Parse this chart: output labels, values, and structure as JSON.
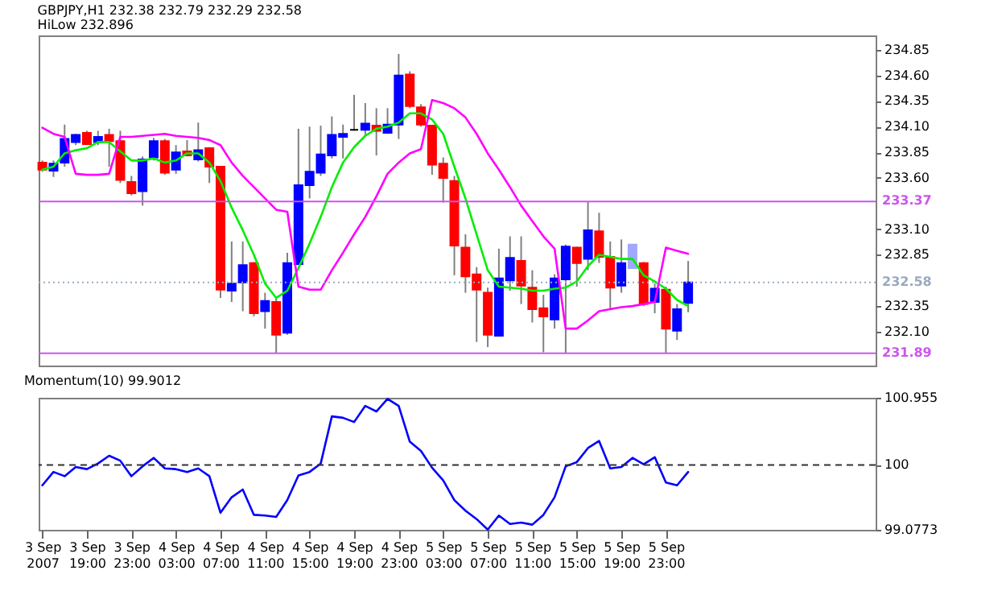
{
  "chart_data": [
    {
      "type": "candlestick",
      "title": "GBPJPY,H1 232.38 232.79 232.29 232.58",
      "subtitle": "HiLow 232.896",
      "color": "#808080",
      "tick_labels": "y",
      "x": [
        "2007-09-03T15:00",
        "2007-09-03T16:00",
        "2007-09-03T17:00",
        "2007-09-03T18:00",
        "2007-09-03T19:00",
        "2007-09-03T20:00",
        "2007-09-03T21:00",
        "2007-09-03T22:00",
        "2007-09-03T23:00",
        "2007-09-04T00:00",
        "2007-09-04T01:00",
        "2007-09-04T02:00",
        "2007-09-04T03:00",
        "2007-09-04T04:00",
        "2007-09-04T05:00",
        "2007-09-04T06:00",
        "2007-09-04T07:00",
        "2007-09-04T08:00",
        "2007-09-04T09:00",
        "2007-09-04T10:00",
        "2007-09-04T11:00",
        "2007-09-04T12:00",
        "2007-09-04T13:00",
        "2007-09-04T14:00",
        "2007-09-04T15:00",
        "2007-09-04T16:00",
        "2007-09-04T17:00",
        "2007-09-04T18:00",
        "2007-09-04T19:00",
        "2007-09-04T20:00",
        "2007-09-04T21:00",
        "2007-09-04T22:00",
        "2007-09-04T23:00",
        "2007-09-05T00:00",
        "2007-09-05T01:00",
        "2007-09-05T02:00",
        "2007-09-05T03:00",
        "2007-09-05T04:00",
        "2007-09-05T05:00",
        "2007-09-05T06:00",
        "2007-09-05T07:00",
        "2007-09-05T08:00",
        "2007-09-05T09:00",
        "2007-09-05T10:00",
        "2007-09-05T11:00",
        "2007-09-05T12:00",
        "2007-09-05T13:00",
        "2007-09-05T14:00",
        "2007-09-05T15:00",
        "2007-09-05T16:00",
        "2007-09-05T17:00",
        "2007-09-05T18:00",
        "2007-09-05T19:00",
        "2007-09-05T20:00",
        "2007-09-05T21:00",
        "2007-09-05T22:00",
        "2007-09-05T23:00",
        "2007-09-06T00:00",
        "2007-09-06T01:00"
      ],
      "ohlc": [
        [
          233.75,
          233.77,
          233.66,
          233.68
        ],
        [
          233.67,
          233.77,
          233.61,
          233.74
        ],
        [
          233.75,
          234.12,
          233.71,
          233.98
        ],
        [
          233.95,
          234.03,
          233.92,
          234.02
        ],
        [
          234.04,
          234.06,
          233.92,
          233.93
        ],
        [
          233.95,
          234.06,
          233.92,
          234.0
        ],
        [
          234.02,
          234.08,
          233.71,
          233.96
        ],
        [
          233.96,
          234.06,
          233.55,
          233.58
        ],
        [
          233.56,
          233.62,
          233.43,
          233.45
        ],
        [
          233.47,
          233.81,
          233.33,
          233.78
        ],
        [
          233.8,
          233.99,
          233.77,
          233.96
        ],
        [
          233.96,
          233.98,
          233.63,
          233.65
        ],
        [
          233.68,
          233.92,
          233.64,
          233.85
        ],
        [
          233.86,
          233.97,
          233.81,
          233.82
        ],
        [
          233.78,
          234.14,
          233.76,
          233.87
        ],
        [
          233.89,
          233.9,
          233.55,
          233.71
        ],
        [
          233.71,
          233.71,
          232.43,
          232.51
        ],
        [
          232.5,
          232.98,
          232.39,
          232.57
        ],
        [
          232.58,
          232.98,
          232.3,
          232.75
        ],
        [
          232.77,
          232.78,
          232.25,
          232.28
        ],
        [
          232.3,
          232.48,
          232.13,
          232.4
        ],
        [
          232.39,
          232.43,
          231.89,
          232.07
        ],
        [
          232.09,
          232.87,
          232.07,
          232.77
        ],
        [
          232.76,
          234.08,
          232.75,
          233.53
        ],
        [
          233.53,
          234.1,
          233.4,
          233.66
        ],
        [
          233.65,
          234.11,
          233.62,
          233.83
        ],
        [
          233.82,
          234.2,
          233.79,
          234.02
        ],
        [
          234.0,
          234.12,
          233.79,
          234.03
        ],
        [
          234.07,
          234.41,
          234.06,
          234.07
        ],
        [
          234.07,
          234.33,
          234.01,
          234.13
        ],
        [
          234.11,
          234.28,
          233.82,
          234.06
        ],
        [
          234.04,
          234.28,
          234.03,
          234.12
        ],
        [
          234.12,
          234.81,
          233.98,
          234.6
        ],
        [
          234.61,
          234.64,
          234.28,
          234.3
        ],
        [
          234.29,
          234.32,
          234.1,
          234.12
        ],
        [
          234.11,
          234.12,
          233.63,
          233.73
        ],
        [
          233.74,
          233.8,
          233.36,
          233.6
        ],
        [
          233.57,
          233.62,
          232.65,
          232.94
        ],
        [
          232.92,
          233.05,
          232.48,
          232.64
        ],
        [
          232.66,
          232.73,
          232.0,
          232.51
        ],
        [
          232.48,
          232.53,
          231.95,
          232.07
        ],
        [
          232.06,
          232.91,
          232.06,
          232.62
        ],
        [
          232.6,
          233.03,
          232.5,
          232.82
        ],
        [
          232.79,
          233.03,
          232.37,
          232.55
        ],
        [
          232.53,
          232.7,
          232.19,
          232.32
        ],
        [
          232.33,
          232.46,
          231.9,
          232.25
        ],
        [
          232.22,
          232.66,
          232.13,
          232.62
        ],
        [
          232.61,
          232.95,
          231.89,
          232.93
        ],
        [
          232.92,
          232.93,
          232.54,
          232.77
        ],
        [
          232.81,
          233.37,
          232.7,
          233.09
        ],
        [
          233.08,
          233.26,
          232.77,
          232.83
        ],
        [
          232.83,
          232.98,
          232.32,
          232.53
        ],
        [
          232.55,
          233.0,
          232.48,
          232.77
        ],
        [
          232.72,
          232.95,
          232.72,
          232.95
        ],
        [
          232.77,
          232.78,
          232.35,
          232.37
        ],
        [
          232.39,
          232.57,
          232.28,
          232.52
        ],
        [
          232.51,
          232.54,
          231.89,
          232.13
        ],
        [
          232.11,
          232.37,
          232.02,
          232.32
        ],
        [
          232.38,
          232.79,
          232.29,
          232.58
        ]
      ],
      "colors": [
        "#ff0000",
        "#0000ff",
        "#0000ff",
        "#0000ff",
        "#ff0000",
        "#0000ff",
        "#ff0000",
        "#ff0000",
        "#ff0000",
        "#0000ff",
        "#0000ff",
        "#ff0000",
        "#0000ff",
        "#ff0000",
        "#0000ff",
        "#ff0000",
        "#ff0000",
        "#0000ff",
        "#0000ff",
        "#ff0000",
        "#0000ff",
        "#ff0000",
        "#0000ff",
        "#0000ff",
        "#0000ff",
        "#0000ff",
        "#0000ff",
        "#0000ff",
        "#000000",
        "#0000ff",
        "#ff0000",
        "#0000ff",
        "#0000ff",
        "#ff0000",
        "#ff0000",
        "#ff0000",
        "#ff0000",
        "#ff0000",
        "#ff0000",
        "#ff0000",
        "#ff0000",
        "#0000ff",
        "#0000ff",
        "#ff0000",
        "#ff0000",
        "#ff0000",
        "#0000ff",
        "#0000ff",
        "#ff0000",
        "#0000ff",
        "#ff0000",
        "#ff0000",
        "#0000ff",
        "#a0a8ff",
        "#ff0000",
        "#0000ff",
        "#ff0000",
        "#0000ff",
        "#0000ff"
      ],
      "series": [
        {
          "type": "line",
          "color": "#00ee00",
          "values": [
            233.68,
            233.71,
            233.84,
            233.87,
            233.89,
            233.95,
            233.95,
            233.86,
            233.77,
            233.77,
            233.79,
            233.75,
            233.77,
            233.84,
            233.84,
            233.75,
            233.57,
            233.31,
            233.09,
            232.85,
            232.57,
            232.43,
            232.5,
            232.72,
            232.96,
            233.22,
            233.51,
            233.75,
            233.9,
            234.01,
            234.08,
            234.1,
            234.14,
            234.23,
            234.23,
            234.17,
            234.03,
            233.71,
            233.4,
            233.05,
            232.7,
            232.54,
            232.53,
            232.52,
            232.5,
            232.5,
            232.52,
            232.53,
            232.59,
            232.74,
            232.85,
            232.83,
            232.81,
            232.81,
            232.65,
            232.59,
            232.52,
            232.41,
            232.35
          ]
        },
        {
          "type": "line",
          "color": "#ff00ff",
          "values": [
            234.09,
            234.03,
            234.0,
            233.64,
            233.63,
            233.63,
            233.64,
            234.0,
            234.0,
            234.01,
            234.02,
            234.03,
            234.01,
            234.0,
            233.99,
            233.97,
            233.92,
            233.75,
            233.62,
            233.51,
            233.4,
            233.29,
            233.27,
            232.54,
            232.51,
            232.51,
            232.7,
            232.87,
            233.05,
            233.22,
            233.42,
            233.64,
            233.75,
            233.84,
            233.88,
            234.36,
            234.33,
            234.28,
            234.19,
            234.03,
            233.84,
            233.68,
            233.51,
            233.33,
            233.18,
            233.03,
            232.91,
            232.13,
            232.13,
            232.21,
            232.3,
            232.32,
            232.34,
            232.35,
            232.37,
            232.39,
            232.92,
            232.89,
            232.86
          ]
        }
      ],
      "xlim": [
        "2007-09-03T14:40",
        "2007-09-06T17:50"
      ],
      "ylim": [
        231.77,
        234.99
      ],
      "yticks": [
        234.85,
        {
          "value": 234.6,
          "label": "234.60"
        },
        234.35,
        {
          "value": 234.1,
          "label": "234.10"
        },
        233.85,
        {
          "value": 233.6,
          "label": "233.60"
        },
        {
          "value": 233.1,
          "label": "233.10"
        },
        232.85,
        232.35,
        {
          "value": 232.1,
          "label": "232.10"
        }
      ],
      "ref_lines": [
        {
          "axis": "y",
          "value": 233.37,
          "label": "233.37",
          "color": "#cc55ee"
        },
        {
          "axis": "y",
          "value": 232.58,
          "label": "232.58",
          "color": "#9aaac0",
          "line_style": "dotted"
        },
        {
          "axis": "y",
          "value": 231.89,
          "label": "231.89",
          "color": "#cc55ee"
        }
      ]
    },
    {
      "type": "line",
      "title": "Momentum(10) 99.9012",
      "x": [
        "2007-09-03T15:00",
        "2007-09-03T16:00",
        "2007-09-03T17:00",
        "2007-09-03T18:00",
        "2007-09-03T19:00",
        "2007-09-03T20:00",
        "2007-09-03T21:00",
        "2007-09-03T22:00",
        "2007-09-03T23:00",
        "2007-09-04T00:00",
        "2007-09-04T01:00",
        "2007-09-04T02:00",
        "2007-09-04T03:00",
        "2007-09-04T04:00",
        "2007-09-04T05:00",
        "2007-09-04T06:00",
        "2007-09-04T07:00",
        "2007-09-04T08:00",
        "2007-09-04T09:00",
        "2007-09-04T10:00",
        "2007-09-04T11:00",
        "2007-09-04T12:00",
        "2007-09-04T13:00",
        "2007-09-04T14:00",
        "2007-09-04T15:00",
        "2007-09-04T16:00",
        "2007-09-04T17:00",
        "2007-09-04T18:00",
        "2007-09-04T19:00",
        "2007-09-04T20:00",
        "2007-09-04T21:00",
        "2007-09-04T22:00",
        "2007-09-04T23:00",
        "2007-09-05T00:00",
        "2007-09-05T01:00",
        "2007-09-05T02:00",
        "2007-09-05T03:00",
        "2007-09-05T04:00",
        "2007-09-05T05:00",
        "2007-09-05T06:00",
        "2007-09-05T07:00",
        "2007-09-05T08:00",
        "2007-09-05T09:00",
        "2007-09-05T10:00",
        "2007-09-05T11:00",
        "2007-09-05T12:00",
        "2007-09-05T13:00",
        "2007-09-05T14:00",
        "2007-09-05T15:00",
        "2007-09-05T16:00",
        "2007-09-05T17:00",
        "2007-09-05T18:00",
        "2007-09-05T19:00",
        "2007-09-05T20:00",
        "2007-09-05T21:00",
        "2007-09-05T22:00",
        "2007-09-05T23:00",
        "2007-09-06T00:00",
        "2007-09-06T01:00"
      ],
      "series": [
        {
          "color": "#0000ff",
          "values": [
            99.71,
            99.9,
            99.84,
            99.97,
            99.94,
            100.02,
            100.13,
            100.06,
            99.84,
            99.98,
            100.1,
            99.95,
            99.94,
            99.9,
            99.95,
            99.84,
            99.32,
            99.54,
            99.65,
            99.29,
            99.28,
            99.26,
            99.5,
            99.85,
            99.9,
            100.02,
            100.69,
            100.67,
            100.61,
            100.84,
            100.76,
            100.94,
            100.84,
            100.33,
            100.2,
            99.96,
            99.78,
            99.5,
            99.35,
            99.23,
            99.08,
            99.28,
            99.16,
            99.18,
            99.15,
            99.29,
            99.54,
            99.98,
            100.04,
            100.24,
            100.34,
            99.95,
            99.97,
            100.1,
            100.01,
            100.11,
            99.75,
            99.71,
            99.9
          ]
        }
      ],
      "xlim": [
        "2007-09-03T14:40",
        "2007-09-06T17:50"
      ],
      "ylim": [
        99.0773,
        100.955
      ],
      "yticks": [
        99.0773,
        100,
        100.955
      ],
      "xticks": [
        {
          "value": "2007-09-03T15:00",
          "label": "3 Sep 2007"
        },
        {
          "value": "2007-09-03T19:00",
          "label": "3 Sep 19:00"
        },
        {
          "value": "2007-09-03T23:00",
          "label": "3 Sep 23:00"
        },
        {
          "value": "2007-09-04T03:00",
          "label": "4 Sep 03:00"
        },
        {
          "value": "2007-09-04T07:00",
          "label": "4 Sep 07:00"
        },
        {
          "value": "2007-09-04T11:00",
          "label": "4 Sep 11:00"
        },
        {
          "value": "2007-09-04T15:00",
          "label": "4 Sep 15:00"
        },
        {
          "value": "2007-09-04T19:00",
          "label": "4 Sep 19:00"
        },
        {
          "value": "2007-09-04T23:00",
          "label": "4 Sep 23:00"
        },
        {
          "value": "2007-09-05T03:00",
          "label": "5 Sep 03:00"
        },
        {
          "value": "2007-09-05T07:00",
          "label": "5 Sep 07:00"
        },
        {
          "value": "2007-09-05T11:00",
          "label": "5 Sep 11:00"
        },
        {
          "value": "2007-09-05T15:00",
          "label": "5 Sep 15:00"
        },
        {
          "value": "2007-09-05T19:00",
          "label": "5 Sep 19:00"
        },
        {
          "value": "2007-09-05T23:00",
          "label": "5 Sep 23:00"
        }
      ],
      "ref_lines": [
        {
          "axis": "y",
          "value": 100,
          "color": "#333333",
          "line_style": "dashed"
        }
      ]
    }
  ]
}
